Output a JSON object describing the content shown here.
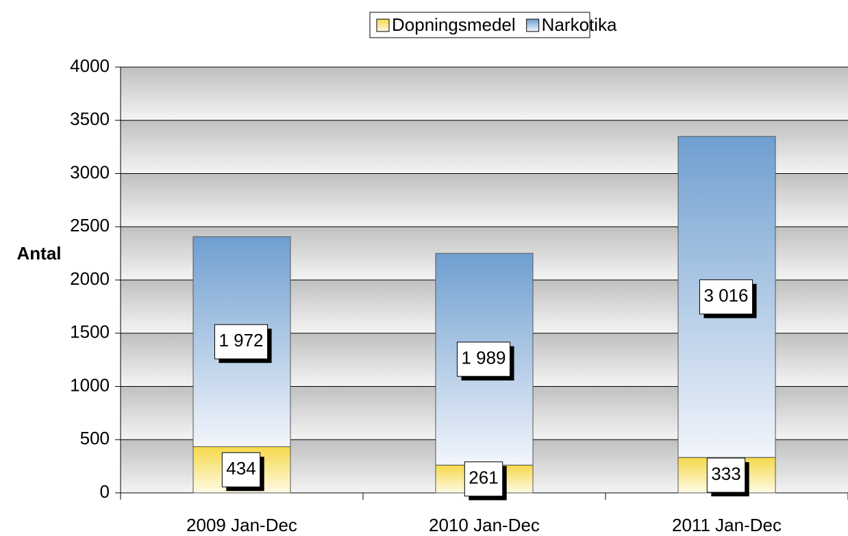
{
  "chart_data": {
    "type": "stacked_bar",
    "categories": [
      "2009 Jan-Dec",
      "2010 Jan-Dec",
      "2011 Jan-Dec"
    ],
    "series": [
      {
        "name": "Dopningsmedel",
        "color": "#f5d84a",
        "values": [
          434,
          261,
          333
        ]
      },
      {
        "name": "Narkotika",
        "color": "#6f9fd0",
        "values": [
          1972,
          1989,
          3016
        ],
        "value_labels": [
          "1 972",
          "1 989",
          "3 016"
        ]
      }
    ],
    "y_label": "Antal",
    "ylim": [
      0,
      4000
    ],
    "yticks": [
      0,
      500,
      1000,
      1500,
      2000,
      2500,
      3000,
      3500,
      4000
    ],
    "grid": true,
    "legend": "top"
  }
}
